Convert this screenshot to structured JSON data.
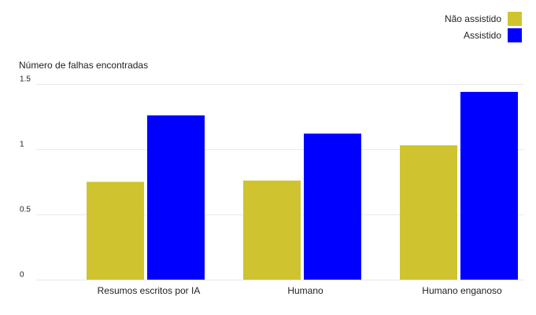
{
  "chart_data": {
    "type": "bar",
    "title": "",
    "xlabel": "",
    "ylabel": "Número de falhas encontradas",
    "ylim": [
      0,
      1.5
    ],
    "yticks": [
      0,
      0.5,
      1,
      1.5
    ],
    "ytick_labels": [
      "0",
      "0.5",
      "1",
      "1.5"
    ],
    "grid": true,
    "legend_position": "top-right",
    "categories": [
      "Resumos escritos por IA",
      "Humano",
      "Humano enganoso"
    ],
    "series": [
      {
        "name": "Não assistido",
        "color": "#cfc42f",
        "values": [
          0.75,
          0.76,
          1.03
        ]
      },
      {
        "name": "Assistido",
        "color": "#0000ff",
        "values": [
          1.26,
          1.12,
          1.44
        ]
      }
    ]
  }
}
